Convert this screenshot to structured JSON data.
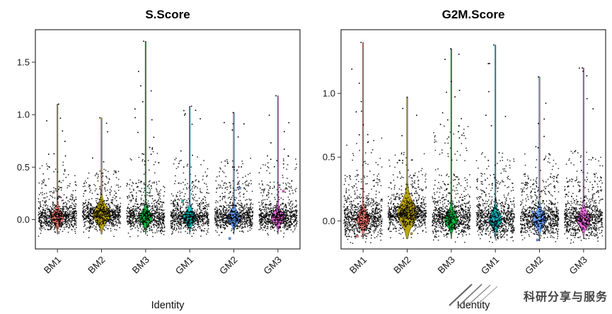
{
  "watermark": {
    "text": "科研分享与服务"
  },
  "chart_data": [
    {
      "type": "violin-jitter",
      "title": "S.Score",
      "xlabel": "Identity",
      "ylabel": "",
      "categories": [
        "BM1",
        "BM2",
        "BM3",
        "GM1",
        "GM2",
        "GM3"
      ],
      "yticks": [
        0.0,
        0.5,
        1.0,
        1.5
      ],
      "ylim": [
        -0.28,
        1.81
      ],
      "grid": false,
      "legend": false,
      "n_points": 780,
      "groups": [
        {
          "name": "BM1",
          "color": "#F8766D",
          "max": 1.1,
          "center": 0.0,
          "spread": 0.055,
          "bulk_hi": 0.45,
          "outliers": 10,
          "accents": []
        },
        {
          "name": "BM2",
          "color": "#B79F00",
          "max": 0.97,
          "center": 0.03,
          "spread": 0.06,
          "bulk_hi": 0.38,
          "outliers": 6,
          "bulge_w": 12,
          "bulge_sd": 0.1,
          "accents": [
            0.12,
            0.07
          ]
        },
        {
          "name": "BM3",
          "color": "#00BA38",
          "max": 1.7,
          "center": 0.0,
          "spread": 0.06,
          "bulk_hi": 0.55,
          "outliers": 16,
          "accents": []
        },
        {
          "name": "GM1",
          "color": "#00BFC4",
          "max": 1.08,
          "center": 0.0,
          "spread": 0.055,
          "bulk_hi": 0.5,
          "outliers": 12,
          "accents": [
            0.18
          ]
        },
        {
          "name": "GM2",
          "color": "#619CFF",
          "max": 1.02,
          "center": 0.0,
          "spread": 0.055,
          "bulk_hi": 0.5,
          "outliers": 11,
          "accents": [
            0.3,
            -0.18
          ]
        },
        {
          "name": "GM3",
          "color": "#F564E3",
          "max": 1.18,
          "center": 0.0,
          "spread": 0.055,
          "bulk_hi": 0.5,
          "outliers": 12,
          "accents": [
            0.27
          ]
        }
      ]
    },
    {
      "type": "violin-jitter",
      "title": "G2M.Score",
      "xlabel": "Identity",
      "ylabel": "",
      "categories": [
        "BM1",
        "BM2",
        "BM3",
        "GM1",
        "GM2",
        "GM3"
      ],
      "yticks": [
        0.0,
        0.5,
        1.0
      ],
      "ylim": [
        -0.22,
        1.5
      ],
      "grid": false,
      "legend": false,
      "n_points": 800,
      "groups": [
        {
          "name": "BM1",
          "color": "#F8766D",
          "max": 1.4,
          "center": -0.01,
          "spread": 0.06,
          "bulk_hi": 0.6,
          "outliers": 9,
          "accents": [
            -0.12
          ]
        },
        {
          "name": "BM2",
          "color": "#B79F00",
          "max": 0.97,
          "center": 0.04,
          "spread": 0.06,
          "bulk_hi": 0.45,
          "outliers": 8,
          "bulge_w": 13,
          "bulge_sd": 0.12,
          "accents": [
            0.15,
            -0.1
          ]
        },
        {
          "name": "BM3",
          "color": "#00BA38",
          "max": 1.35,
          "center": -0.01,
          "spread": 0.062,
          "bulk_hi": 0.65,
          "outliers": 15,
          "accents": []
        },
        {
          "name": "GM1",
          "color": "#00BFC4",
          "max": 1.38,
          "center": -0.01,
          "spread": 0.058,
          "bulk_hi": 0.45,
          "outliers": 8,
          "accents": [
            0.05
          ]
        },
        {
          "name": "GM2",
          "color": "#619CFF",
          "max": 1.13,
          "center": -0.01,
          "spread": 0.058,
          "bulk_hi": 0.45,
          "outliers": 8,
          "accents": [
            0.07,
            -0.15
          ]
        },
        {
          "name": "GM3",
          "color": "#F564E3",
          "max": 1.2,
          "center": -0.01,
          "spread": 0.06,
          "bulk_hi": 0.45,
          "outliers": 7,
          "accents": []
        }
      ]
    }
  ]
}
